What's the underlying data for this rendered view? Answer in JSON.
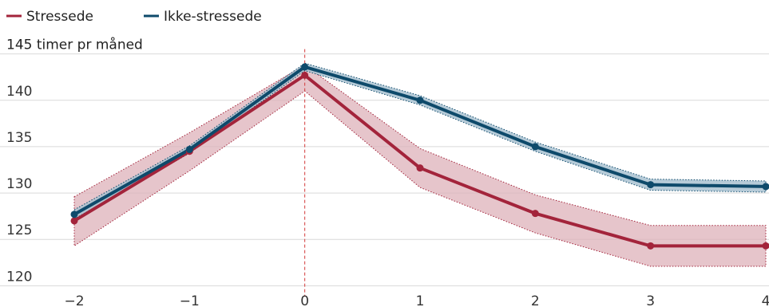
{
  "chart_data": {
    "type": "line",
    "x": [
      -2,
      -1,
      0,
      1,
      2,
      3,
      4
    ],
    "x_tick_labels": [
      "−2",
      "−1",
      "0",
      "1",
      "2",
      "3",
      "4"
    ],
    "y_tick_labels": [
      "120",
      "125",
      "130",
      "135",
      "140",
      "145 timer pr måned"
    ],
    "y_ticks": [
      120,
      125,
      130,
      135,
      140,
      145
    ],
    "ylim": [
      119,
      146
    ],
    "xlim": [
      -2,
      4
    ],
    "reference_line_x": 0,
    "legend_position": "top-left",
    "series": [
      {
        "name": "Stressede",
        "color": "#a3243b",
        "band_color": "#ddb1b9",
        "values": [
          127.0,
          134.5,
          142.7,
          132.7,
          127.8,
          124.3,
          124.3
        ],
        "upper": [
          129.6,
          136.5,
          143.8,
          134.8,
          129.8,
          126.5,
          126.5
        ],
        "lower": [
          124.3,
          132.4,
          141.0,
          130.6,
          125.7,
          122.1,
          122.1
        ]
      },
      {
        "name": "Ikke-stressede",
        "color": "#0e4a6b",
        "band_color": "#a9c2d1",
        "values": [
          127.7,
          134.7,
          143.6,
          140.0,
          135.0,
          130.9,
          130.7
        ],
        "upper": [
          128.2,
          135.1,
          144.0,
          140.5,
          135.5,
          131.5,
          131.3
        ],
        "lower": [
          127.2,
          134.3,
          143.2,
          139.5,
          134.5,
          130.3,
          130.1
        ]
      }
    ]
  }
}
